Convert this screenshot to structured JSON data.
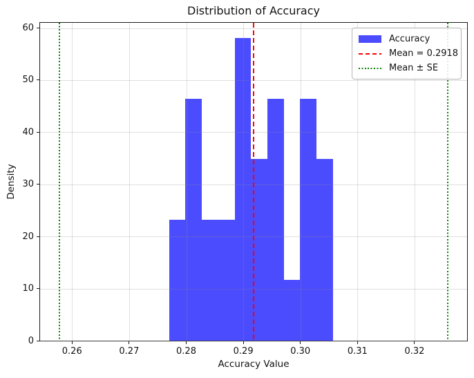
{
  "figure": {
    "title": "Distribution of Accuracy",
    "xlabel": "Accuracy Value",
    "ylabel": "Density"
  },
  "legend": {
    "items": [
      {
        "label": "Accuracy",
        "swatch": "blue-patch",
        "color": "#4c4cff"
      },
      {
        "label": "Mean = 0.2918",
        "swatch": "red-dashed-line",
        "color": "#ff0000"
      },
      {
        "label": "Mean ± SE",
        "swatch": "green-dotted-line",
        "color": "#008000"
      }
    ]
  },
  "chart_data": {
    "type": "bar",
    "subtype": "histogram",
    "title": "Distribution of Accuracy",
    "xlabel": "Accuracy Value",
    "ylabel": "Density",
    "bin_edges": [
      0.277,
      0.27987,
      0.28274,
      0.28561,
      0.28848,
      0.29135,
      0.29422,
      0.29709,
      0.29996,
      0.30283,
      0.3057
    ],
    "densities": [
      23.24,
      46.47,
      23.24,
      23.24,
      58.09,
      34.85,
      46.47,
      11.62,
      46.47,
      34.85
    ],
    "mean_line": {
      "x": 0.2918,
      "label": "Mean = 0.2918",
      "color": "#ff0000",
      "style": "dashed"
    },
    "se_lines": {
      "x": [
        0.2578,
        0.3258
      ],
      "label": "Mean ± SE",
      "color": "#008000",
      "style": "dotted"
    },
    "x_ticks": [
      0.26,
      0.27,
      0.28,
      0.29,
      0.3,
      0.31,
      0.32
    ],
    "x_tick_labels": [
      "0.26",
      "0.27",
      "0.28",
      "0.29",
      "0.30",
      "0.31",
      "0.32"
    ],
    "y_ticks": [
      0,
      10,
      20,
      30,
      40,
      50,
      60
    ],
    "y_tick_labels": [
      "0",
      "10",
      "20",
      "30",
      "40",
      "50",
      "60"
    ],
    "xlim": [
      0.2544,
      0.3292
    ],
    "ylim": [
      0,
      61.0
    ],
    "bar_color": "#4c4cff",
    "grid": true,
    "legend_position": "upper right"
  }
}
